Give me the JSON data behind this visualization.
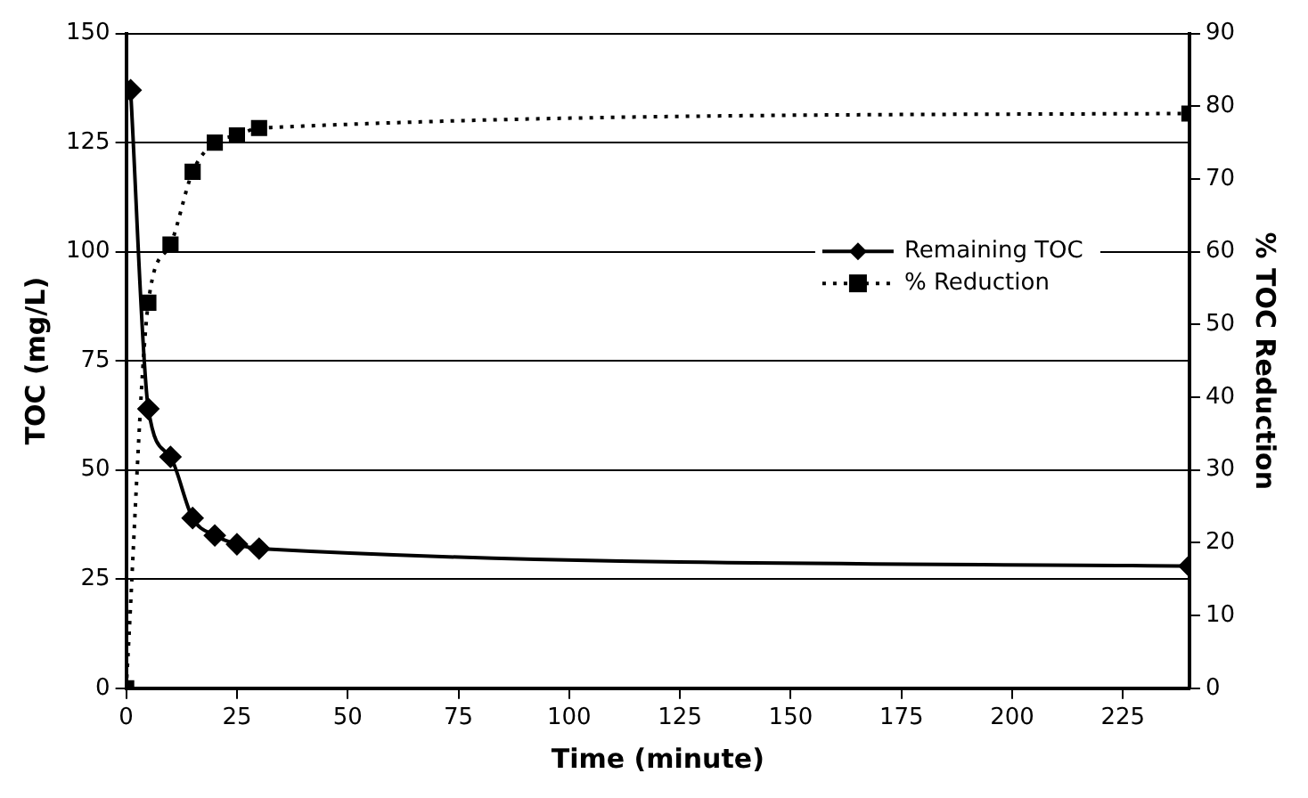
{
  "chart_data": {
    "type": "line",
    "xlabel": "Time (minute)",
    "ylabel": "TOC (mg/L)",
    "y2label": "% TOC Reduction",
    "xlim": [
      0,
      240
    ],
    "xticks": [
      0,
      25,
      50,
      75,
      100,
      125,
      150,
      175,
      200,
      225
    ],
    "ylim": [
      0,
      150
    ],
    "yticks": [
      0,
      25,
      50,
      75,
      100,
      125,
      150
    ],
    "y2lim": [
      0,
      90
    ],
    "y2ticks": [
      0,
      10,
      20,
      30,
      40,
      50,
      60,
      70,
      80,
      90
    ],
    "grid": "y",
    "legend": "right",
    "series": [
      {
        "name": "Remaining TOC",
        "color": "#000000",
        "marker": "diamond",
        "line_style": "solid",
        "x": [
          1,
          5,
          10,
          15,
          20,
          25,
          30,
          240
        ],
        "values": [
          137,
          64,
          53,
          39,
          35,
          33,
          32,
          28
        ]
      },
      {
        "name": "% Reduction",
        "color": "#000000",
        "marker": "square",
        "line_style": "dotted",
        "axis": "y2",
        "x": [
          0,
          5,
          10,
          15,
          20,
          25,
          30,
          240
        ],
        "values": [
          0,
          53,
          61,
          71,
          75,
          76,
          77,
          79
        ]
      }
    ]
  }
}
